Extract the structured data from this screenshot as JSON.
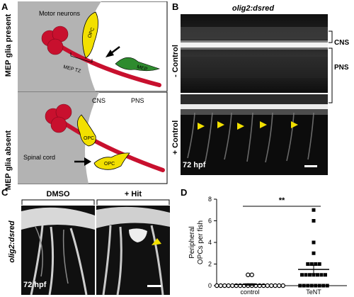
{
  "panels": {
    "A": {
      "label": "A",
      "present_title": "MEP glia present",
      "absent_title": "MEP glia absent",
      "motor_neurons": "Motor neurons",
      "opc": "OPC",
      "mep": "MEP",
      "mep_tz": "MEP TZ",
      "cns": "CNS",
      "pns": "PNS",
      "spinal_cord": "Spinal cord",
      "opc_bottom": "OPC",
      "opc_lower": "OPC"
    },
    "B": {
      "label": "B",
      "title": "olig2:dsred",
      "minus_control": "- Control",
      "plus_control": "+ Control",
      "cns": "CNS",
      "pns": "PNS",
      "timepoint": "72 hpf"
    },
    "C": {
      "label": "C",
      "dmso": "DMSO",
      "hit": "+ Hit",
      "side_label": "olig2:dsred",
      "timepoint": "72 hpf"
    },
    "D": {
      "label": "D",
      "significance": "**",
      "ylabel_line1": "Peripheral",
      "ylabel_line2": "OPCs per fish"
    }
  },
  "chart_data": {
    "type": "scatter",
    "categories": [
      "control",
      "TeNT"
    ],
    "ylim": [
      0,
      8
    ],
    "yticks": [
      0,
      2,
      4,
      6,
      8
    ],
    "ylabel": "Peripheral OPCs per fish",
    "significance": "**",
    "series": [
      {
        "name": "control",
        "values": [
          0,
          0,
          0,
          0,
          0,
          0,
          0,
          0,
          0,
          0,
          0,
          0,
          0,
          0,
          0,
          0,
          0,
          0,
          1,
          1
        ],
        "mean": 0.1
      },
      {
        "name": "TeNT",
        "values": [
          0,
          0,
          0,
          0,
          0,
          0,
          0,
          0,
          1,
          1,
          1,
          1,
          1,
          1,
          1,
          2,
          2,
          2,
          2,
          3,
          4,
          6,
          7
        ],
        "mean": 1.5
      }
    ],
    "colors": {
      "control": "#000000",
      "TeNT": "#000000"
    }
  }
}
